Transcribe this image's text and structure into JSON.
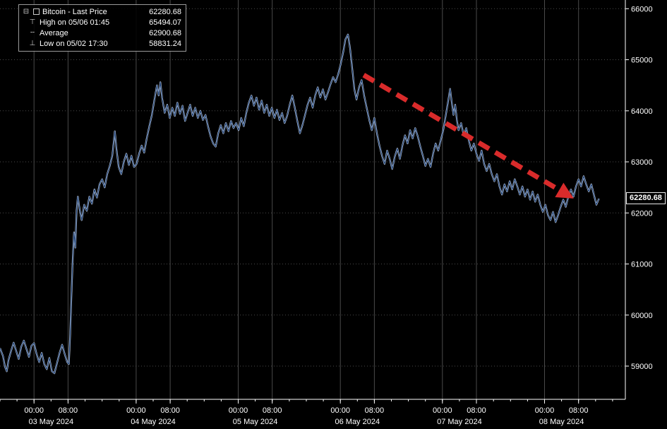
{
  "icons": {
    "expander": "⊟",
    "high": "⊤",
    "average": "╌",
    "low": "⊥"
  },
  "colors": {
    "background": "#000000",
    "grid": "#4a4a4a",
    "line_primary": "#1a3d73",
    "line_highlight": "#cdd9ea",
    "trend_arrow": "#d92b2b",
    "axis_text": "#ffffff",
    "last_price_bg": "#000000",
    "last_price_text": "#ffffff"
  },
  "legend": {
    "rows": [
      {
        "icon": "series-swatch",
        "label": "Bitcoin - Last Price",
        "value": "62280.68"
      },
      {
        "icon": "high-marker",
        "label": "High on 05/06 01:45",
        "value": "65494.07"
      },
      {
        "icon": "average-marker",
        "label": "Average",
        "value": "62900.68"
      },
      {
        "icon": "low-marker",
        "label": "Low on 05/02 17:30",
        "value": "58831.24"
      }
    ]
  },
  "chart_data": {
    "type": "line",
    "title": "Bitcoin - Last Price",
    "xlabel": "",
    "ylabel": "",
    "x_unit": "hours since 2024-05-02 16:00",
    "x_domain": [
      0,
      147
    ],
    "y_domain": [
      58350,
      66170
    ],
    "y_ticks": [
      59000,
      60000,
      61000,
      62000,
      63000,
      64000,
      65000,
      66000
    ],
    "x_axis": {
      "time_labels": [
        "00:00",
        "08:00"
      ],
      "minor_tick_hours": 4,
      "days": [
        {
          "date": "03 May 2024",
          "t00": 8,
          "t08": 16
        },
        {
          "date": "04 May 2024",
          "t00": 32,
          "t08": 40
        },
        {
          "date": "05 May 2024",
          "t00": 56,
          "t08": 64
        },
        {
          "date": "06 May 2024",
          "t00": 80,
          "t08": 88
        },
        {
          "date": "07 May 2024",
          "t00": 104,
          "t08": 112
        },
        {
          "date": "08 May 2024",
          "t00": 128,
          "t08": 136
        }
      ]
    },
    "last_price": 62280.68,
    "last_price_label": "62280.68",
    "high": {
      "time": "05/06 01:45",
      "value": 65494.07
    },
    "average": 62900.68,
    "low": {
      "time": "05/02 17:30",
      "value": 58831.24
    },
    "trend_arrow": {
      "from": [
        85.5,
        64700
      ],
      "to": [
        133.5,
        62350
      ]
    },
    "series": [
      {
        "name": "Bitcoin - Last Price",
        "points": [
          [
            0,
            59350
          ],
          [
            0.7,
            59200
          ],
          [
            1.2,
            58980
          ],
          [
            1.6,
            58900
          ],
          [
            2,
            59120
          ],
          [
            2.6,
            59300
          ],
          [
            3.2,
            59460
          ],
          [
            3.8,
            59300
          ],
          [
            4.4,
            59140
          ],
          [
            5,
            59380
          ],
          [
            5.6,
            59500
          ],
          [
            6.2,
            59340
          ],
          [
            6.8,
            59180
          ],
          [
            7.4,
            59400
          ],
          [
            8,
            59450
          ],
          [
            8.6,
            59240
          ],
          [
            9.2,
            59080
          ],
          [
            9.8,
            59260
          ],
          [
            10.4,
            59040
          ],
          [
            11,
            58940
          ],
          [
            11.6,
            59160
          ],
          [
            12.2,
            58900
          ],
          [
            12.8,
            58860
          ],
          [
            13.4,
            59060
          ],
          [
            14,
            59260
          ],
          [
            14.6,
            59420
          ],
          [
            15.2,
            59240
          ],
          [
            15.8,
            59080
          ],
          [
            16.2,
            59040
          ],
          [
            16.5,
            59620
          ],
          [
            16.8,
            60420
          ],
          [
            17.1,
            61120
          ],
          [
            17.4,
            61620
          ],
          [
            17.7,
            61320
          ],
          [
            18,
            62040
          ],
          [
            18.3,
            62320
          ],
          [
            18.7,
            62080
          ],
          [
            19.2,
            61860
          ],
          [
            19.8,
            62160
          ],
          [
            20.4,
            62040
          ],
          [
            21,
            62320
          ],
          [
            21.6,
            62180
          ],
          [
            22.2,
            62460
          ],
          [
            22.8,
            62300
          ],
          [
            23.4,
            62560
          ],
          [
            24,
            62660
          ],
          [
            24.6,
            62500
          ],
          [
            25.2,
            62760
          ],
          [
            25.8,
            62920
          ],
          [
            26.4,
            63120
          ],
          [
            27,
            63600
          ],
          [
            27.4,
            63240
          ],
          [
            27.9,
            62900
          ],
          [
            28.5,
            62760
          ],
          [
            29.1,
            63000
          ],
          [
            29.7,
            63160
          ],
          [
            30.3,
            62940
          ],
          [
            30.9,
            63120
          ],
          [
            31.5,
            62900
          ],
          [
            32.1,
            62960
          ],
          [
            32.7,
            63160
          ],
          [
            33.3,
            63320
          ],
          [
            33.9,
            63180
          ],
          [
            34.5,
            63460
          ],
          [
            35.1,
            63700
          ],
          [
            35.7,
            63920
          ],
          [
            36.3,
            64220
          ],
          [
            36.9,
            64500
          ],
          [
            37.3,
            64300
          ],
          [
            37.7,
            64560
          ],
          [
            38.1,
            64260
          ],
          [
            38.7,
            63960
          ],
          [
            39.3,
            64120
          ],
          [
            39.9,
            63860
          ],
          [
            40.5,
            64060
          ],
          [
            41.1,
            63900
          ],
          [
            41.7,
            64160
          ],
          [
            42.3,
            63940
          ],
          [
            42.9,
            64100
          ],
          [
            43.5,
            63800
          ],
          [
            44.1,
            63960
          ],
          [
            44.7,
            64120
          ],
          [
            45.3,
            63900
          ],
          [
            45.9,
            64060
          ],
          [
            46.5,
            63860
          ],
          [
            47.1,
            64000
          ],
          [
            47.7,
            63820
          ],
          [
            48.3,
            63920
          ],
          [
            48.9,
            63700
          ],
          [
            49.5,
            63500
          ],
          [
            50.1,
            63360
          ],
          [
            50.7,
            63300
          ],
          [
            51.3,
            63560
          ],
          [
            51.9,
            63720
          ],
          [
            52.5,
            63560
          ],
          [
            53.1,
            63760
          ],
          [
            53.7,
            63600
          ],
          [
            54.3,
            63800
          ],
          [
            54.9,
            63660
          ],
          [
            55.5,
            63760
          ],
          [
            56.1,
            63620
          ],
          [
            56.7,
            63860
          ],
          [
            57.3,
            63700
          ],
          [
            57.9,
            63960
          ],
          [
            58.5,
            64160
          ],
          [
            59.1,
            64300
          ],
          [
            59.7,
            64100
          ],
          [
            60.3,
            64260
          ],
          [
            60.9,
            64020
          ],
          [
            61.5,
            64200
          ],
          [
            62.1,
            63960
          ],
          [
            62.7,
            64120
          ],
          [
            63.3,
            63900
          ],
          [
            63.9,
            64060
          ],
          [
            64.5,
            63860
          ],
          [
            65.1,
            64020
          ],
          [
            65.7,
            63820
          ],
          [
            66.3,
            63960
          ],
          [
            66.9,
            63760
          ],
          [
            67.5,
            63900
          ],
          [
            68.1,
            64120
          ],
          [
            68.7,
            64300
          ],
          [
            69.3,
            64060
          ],
          [
            69.9,
            63800
          ],
          [
            70.5,
            63560
          ],
          [
            71.1,
            63720
          ],
          [
            71.7,
            63920
          ],
          [
            72.3,
            64120
          ],
          [
            72.9,
            64260
          ],
          [
            73.5,
            64060
          ],
          [
            74.1,
            64300
          ],
          [
            74.7,
            64460
          ],
          [
            75.3,
            64260
          ],
          [
            75.9,
            64420
          ],
          [
            76.5,
            64220
          ],
          [
            77.1,
            64360
          ],
          [
            77.7,
            64520
          ],
          [
            78.3,
            64660
          ],
          [
            78.9,
            64560
          ],
          [
            79.5,
            64720
          ],
          [
            80.1,
            64920
          ],
          [
            80.7,
            65160
          ],
          [
            81.2,
            65400
          ],
          [
            81.8,
            65494.07
          ],
          [
            82.3,
            65220
          ],
          [
            82.8,
            64820
          ],
          [
            83.3,
            64420
          ],
          [
            83.8,
            64220
          ],
          [
            84.4,
            64460
          ],
          [
            85,
            64600
          ],
          [
            85.6,
            64300
          ],
          [
            86.2,
            64060
          ],
          [
            86.8,
            63820
          ],
          [
            87.4,
            63620
          ],
          [
            88,
            63860
          ],
          [
            88.6,
            63560
          ],
          [
            89.2,
            63320
          ],
          [
            89.8,
            63120
          ],
          [
            90.4,
            62960
          ],
          [
            91,
            63220
          ],
          [
            91.6,
            63060
          ],
          [
            92.2,
            62860
          ],
          [
            92.8,
            63100
          ],
          [
            93.4,
            63260
          ],
          [
            94,
            63060
          ],
          [
            94.6,
            63320
          ],
          [
            95.2,
            63520
          ],
          [
            95.8,
            63360
          ],
          [
            96.4,
            63620
          ],
          [
            97,
            63460
          ],
          [
            97.6,
            63660
          ],
          [
            98.2,
            63500
          ],
          [
            98.8,
            63300
          ],
          [
            99.4,
            63120
          ],
          [
            100,
            62920
          ],
          [
            100.6,
            63060
          ],
          [
            101.2,
            62900
          ],
          [
            101.8,
            63160
          ],
          [
            102.4,
            63360
          ],
          [
            103,
            63220
          ],
          [
            103.6,
            63420
          ],
          [
            104.2,
            63620
          ],
          [
            104.8,
            63920
          ],
          [
            105.4,
            64220
          ],
          [
            105.8,
            64430
          ],
          [
            106.2,
            64160
          ],
          [
            106.6,
            63920
          ],
          [
            107,
            64120
          ],
          [
            107.4,
            63820
          ],
          [
            107.8,
            63620
          ],
          [
            108.4,
            63760
          ],
          [
            109,
            63520
          ],
          [
            109.6,
            63660
          ],
          [
            110.2,
            63420
          ],
          [
            110.8,
            63220
          ],
          [
            111.4,
            63360
          ],
          [
            112,
            63160
          ],
          [
            112.6,
            63020
          ],
          [
            113.2,
            63220
          ],
          [
            113.8,
            62960
          ],
          [
            114.4,
            62820
          ],
          [
            115,
            62960
          ],
          [
            115.6,
            62760
          ],
          [
            116.2,
            62620
          ],
          [
            116.8,
            62760
          ],
          [
            117.4,
            62520
          ],
          [
            118,
            62360
          ],
          [
            118.6,
            62560
          ],
          [
            119.2,
            62420
          ],
          [
            119.8,
            62620
          ],
          [
            120.4,
            62460
          ],
          [
            121,
            62660
          ],
          [
            121.6,
            62520
          ],
          [
            122.2,
            62360
          ],
          [
            122.8,
            62520
          ],
          [
            123.4,
            62320
          ],
          [
            124,
            62460
          ],
          [
            124.6,
            62260
          ],
          [
            125.2,
            62420
          ],
          [
            125.8,
            62220
          ],
          [
            126.4,
            62360
          ],
          [
            127,
            62160
          ],
          [
            127.6,
            62020
          ],
          [
            128.2,
            62160
          ],
          [
            128.8,
            61960
          ],
          [
            129.4,
            61860
          ],
          [
            130,
            62020
          ],
          [
            130.6,
            61820
          ],
          [
            131.2,
            61960
          ],
          [
            131.8,
            62120
          ],
          [
            132.4,
            62260
          ],
          [
            133,
            62120
          ],
          [
            133.6,
            62320
          ],
          [
            134.2,
            62460
          ],
          [
            134.8,
            62320
          ],
          [
            135.4,
            62520
          ],
          [
            136,
            62660
          ],
          [
            136.6,
            62520
          ],
          [
            137.2,
            62720
          ],
          [
            137.8,
            62560
          ],
          [
            138.4,
            62420
          ],
          [
            139,
            62560
          ],
          [
            139.6,
            62360
          ],
          [
            140.2,
            62160
          ],
          [
            140.8,
            62280.68
          ]
        ]
      }
    ]
  }
}
